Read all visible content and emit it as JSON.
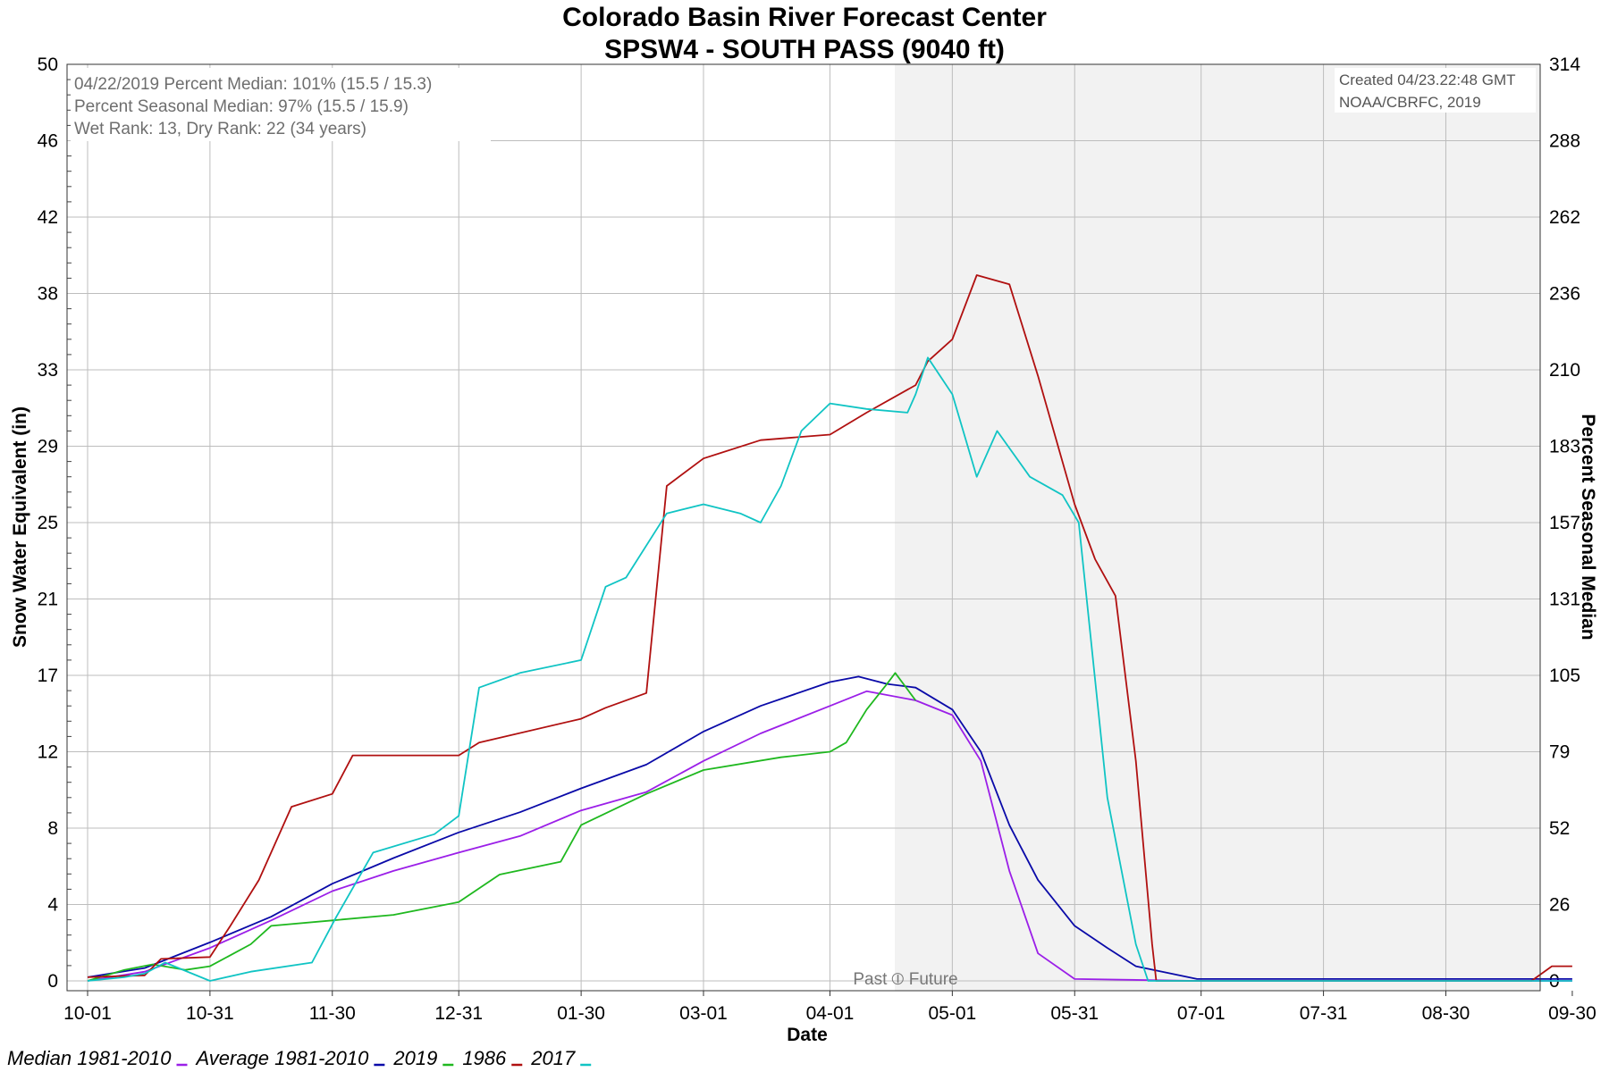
{
  "chart_data": {
    "type": "line",
    "title": "Colorado Basin River Forecast Center",
    "subtitle": "SPSW4 - SOUTH PASS (9040 ft)",
    "xlabel": "Date",
    "ylabel": "Snow Water Equivalent (in)",
    "y2label": "Percent Seasonal Median",
    "x_ticks": [
      "10-01",
      "10-31",
      "11-30",
      "12-31",
      "01-30",
      "03-01",
      "04-01",
      "05-01",
      "05-31",
      "07-01",
      "07-31",
      "08-30",
      "09-30"
    ],
    "y_ticks": [
      "0",
      "4",
      "8",
      "12",
      "17",
      "21",
      "25",
      "29",
      "33",
      "38",
      "42",
      "46",
      "50"
    ],
    "y2_ticks": [
      "0",
      "26",
      "52",
      "79",
      "105",
      "131",
      "157",
      "183",
      "210",
      "236",
      "262",
      "288",
      "314"
    ],
    "ylim": [
      0,
      50
    ],
    "y2lim": [
      0,
      314
    ],
    "past_future_label": "Past ⦶ Future",
    "info_lines": [
      "04/22/2019 Percent Median: 101% (15.5 / 15.3)",
      "Percent Seasonal Median: 97% (15.5 / 15.9)",
      "Wet Rank: 13, Dry Rank: 22  (34 years)"
    ],
    "created_lines": [
      "Created 04/23.22:48 GMT",
      "NOAA/CBRFC, 2019"
    ],
    "grid": true,
    "series": [
      {
        "name": "Median 1981-2010",
        "color": "#9b1fe8",
        "x": [
          "10-01",
          "10-15",
          "10-31",
          "11-15",
          "11-30",
          "12-15",
          "12-31",
          "01-15",
          "01-30",
          "02-15",
          "03-01",
          "03-15",
          "04-01",
          "04-10",
          "04-22",
          "05-01",
          "05-08",
          "05-15",
          "05-22",
          "05-31",
          "06-30",
          "09-15",
          "09-30"
        ],
        "y": [
          0,
          0.5,
          1.8,
          3.3,
          4.9,
          6.0,
          7.0,
          7.9,
          9.3,
          10.3,
          12.0,
          13.5,
          15.0,
          15.8,
          15.3,
          14.5,
          12.0,
          6.0,
          1.5,
          0.1,
          0,
          0,
          0
        ]
      },
      {
        "name": "Average 1981-2010",
        "color": "#0a0aa8",
        "x": [
          "10-01",
          "10-15",
          "10-31",
          "11-15",
          "11-30",
          "12-15",
          "12-31",
          "01-15",
          "01-30",
          "02-15",
          "03-01",
          "03-15",
          "04-01",
          "04-08",
          "04-15",
          "04-22",
          "05-01",
          "05-08",
          "05-15",
          "05-22",
          "05-31",
          "06-08",
          "06-15",
          "06-30",
          "09-30"
        ],
        "y": [
          0.2,
          0.7,
          2.1,
          3.5,
          5.3,
          6.7,
          8.1,
          9.2,
          10.5,
          11.8,
          13.6,
          15.0,
          16.3,
          16.6,
          16.2,
          16.0,
          14.8,
          12.5,
          8.5,
          5.5,
          3.0,
          1.8,
          0.8,
          0.1,
          0.1
        ]
      },
      {
        "name": "2019",
        "color": "#1fb81f",
        "x": [
          "10-01",
          "10-10",
          "10-17",
          "10-25",
          "10-31",
          "11-10",
          "11-15",
          "11-30",
          "12-15",
          "12-31",
          "01-10",
          "01-25",
          "01-30",
          "02-15",
          "03-01",
          "03-20",
          "04-01",
          "04-05",
          "04-10",
          "04-15",
          "04-17",
          "04-22"
        ],
        "y": [
          0,
          0.6,
          0.9,
          0.6,
          0.8,
          2.0,
          3.0,
          3.3,
          3.6,
          4.3,
          5.8,
          6.5,
          8.5,
          10.2,
          11.5,
          12.2,
          12.5,
          13.0,
          14.8,
          16.2,
          16.8,
          15.3
        ]
      },
      {
        "name": "1986",
        "color": "#b01010",
        "x": [
          "10-01",
          "10-15",
          "10-19",
          "10-31",
          "11-05",
          "11-12",
          "11-20",
          "11-30",
          "12-05",
          "12-31",
          "01-05",
          "01-30",
          "02-05",
          "02-15",
          "02-20",
          "03-01",
          "03-15",
          "04-01",
          "04-10",
          "04-22",
          "04-25",
          "05-01",
          "05-07",
          "05-15",
          "05-22",
          "05-31",
          "06-05",
          "06-10",
          "06-15",
          "06-19",
          "06-20",
          "09-20",
          "09-25",
          "09-30"
        ],
        "y": [
          0.2,
          0.3,
          1.2,
          1.3,
          3.0,
          5.5,
          9.5,
          10.2,
          12.3,
          12.3,
          13.0,
          14.3,
          14.9,
          15.7,
          27.0,
          28.5,
          29.5,
          29.8,
          31.0,
          32.5,
          33.8,
          35.0,
          38.5,
          38.0,
          33.0,
          26.0,
          23.0,
          21.0,
          12.0,
          2.0,
          0,
          0,
          0.8,
          0.8
        ]
      },
      {
        "name": "2017",
        "color": "#10c4c4",
        "x": [
          "10-01",
          "10-10",
          "10-15",
          "10-20",
          "10-31",
          "11-10",
          "11-25",
          "12-01",
          "12-10",
          "12-25",
          "12-31",
          "01-05",
          "01-15",
          "01-30",
          "02-05",
          "02-10",
          "02-20",
          "03-01",
          "03-10",
          "03-15",
          "03-20",
          "03-25",
          "04-01",
          "04-10",
          "04-20",
          "04-22",
          "04-25",
          "05-01",
          "05-07",
          "05-12",
          "05-20",
          "05-28",
          "06-01",
          "06-08",
          "06-15",
          "06-18",
          "09-30"
        ],
        "y": [
          0,
          0.2,
          0.4,
          1.0,
          0,
          0.5,
          1.0,
          3.5,
          7.0,
          8.0,
          9.0,
          16.0,
          16.8,
          17.5,
          21.5,
          22.0,
          25.5,
          26.0,
          25.5,
          25.0,
          27.0,
          30.0,
          31.5,
          31.2,
          31.0,
          32.0,
          34.0,
          32.0,
          27.5,
          30.0,
          27.5,
          26.5,
          25.0,
          10.0,
          2.0,
          0,
          0
        ]
      }
    ]
  }
}
